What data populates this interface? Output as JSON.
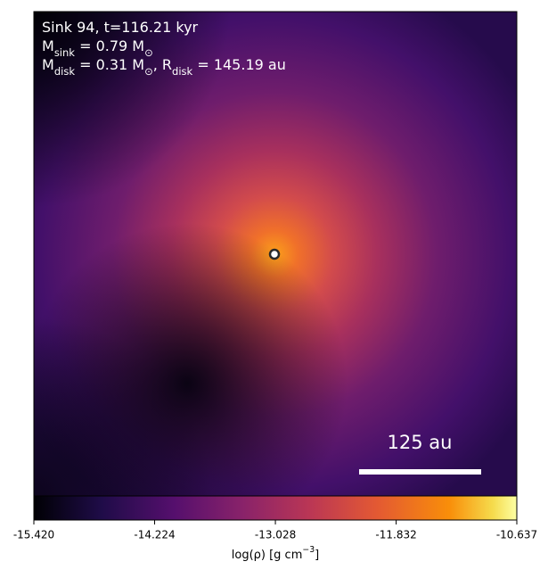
{
  "chart_data": {
    "type": "image",
    "annotations": [
      [
        "Sink 94, t=116.21 kyr"
      ],
      [
        "M",
        {
          "sub": "sink"
        },
        " = 0.79 M",
        {
          "sub": "⊙"
        }
      ],
      [
        "M",
        {
          "sub": "disk"
        },
        " = 0.31 M",
        {
          "sub": "⊙"
        },
        ", R",
        {
          "sub": "disk"
        },
        " = 145.19 au"
      ]
    ],
    "scale_bar": "125 au",
    "colorbar": {
      "label": [
        "log(ρ) [g cm",
        {
          "sup": "−3"
        },
        "]"
      ],
      "lim": [
        -15.42,
        -10.637
      ],
      "ticks": [
        {
          "value": -15.42,
          "label": "-15.420"
        },
        -14.224,
        -13.028,
        -11.832,
        -10.637
      ]
    }
  }
}
